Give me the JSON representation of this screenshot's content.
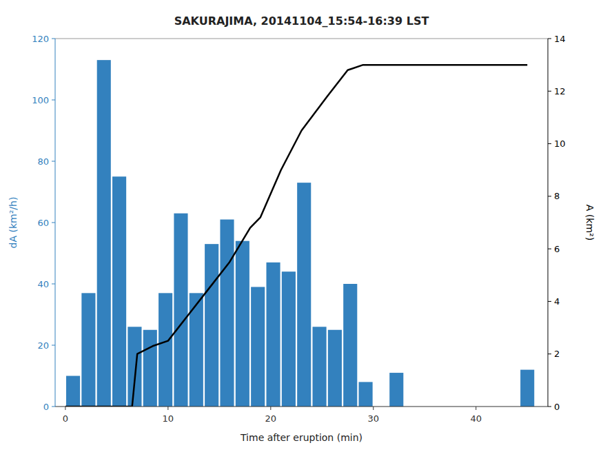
{
  "chart_data": {
    "type": "bar",
    "title": "SAKURAJIMA, 20141104_15:54-16:39 LST",
    "xlabel": "Time after eruption (min)",
    "ylabel": "dA (km²/h)",
    "y2label": "A (km²)",
    "xlim": [
      -1,
      47
    ],
    "xticks": [
      0,
      10,
      20,
      30,
      40
    ],
    "ylim": [
      0,
      120
    ],
    "yticks": [
      0,
      20,
      40,
      60,
      80,
      100,
      120
    ],
    "y2lim": [
      0,
      14
    ],
    "y2ticks": [
      0,
      2,
      4,
      6,
      8,
      10,
      12,
      14
    ],
    "grid": false,
    "series": [
      {
        "type": "bar",
        "color": "#3381be",
        "x": [
          0.75,
          2.25,
          3.75,
          5.25,
          6.75,
          8.25,
          9.75,
          11.25,
          12.75,
          14.25,
          15.75,
          17.25,
          18.75,
          20.25,
          21.75,
          23.25,
          24.75,
          26.25,
          27.75,
          29.25,
          30.75,
          32.25,
          45.0
        ],
        "values": [
          10,
          37,
          113,
          75,
          26,
          25,
          37,
          63,
          37,
          53,
          61,
          54,
          39,
          47,
          44,
          73,
          26,
          25,
          40,
          8,
          0,
          11,
          12
        ]
      },
      {
        "type": "line",
        "color": "#000000",
        "axis": "y2",
        "x": [
          0,
          3,
          5,
          6.5,
          7,
          7.5,
          8,
          8.5,
          10,
          12,
          14,
          16,
          18,
          19,
          21,
          23,
          25.5,
          27.5,
          29,
          30,
          32,
          45
        ],
        "values": [
          0,
          0,
          0,
          0,
          2.0,
          2.1,
          2.2,
          2.3,
          2.5,
          3.5,
          4.5,
          5.5,
          6.8,
          7.2,
          9.0,
          10.5,
          11.8,
          12.8,
          13.0,
          13.0,
          13.0,
          13.0
        ]
      }
    ]
  }
}
